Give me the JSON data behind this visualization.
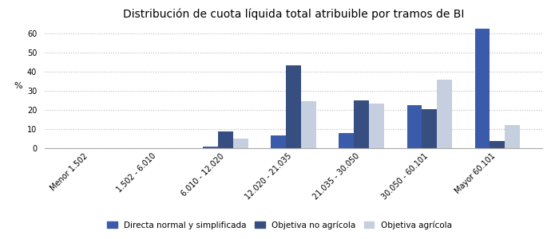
{
  "title": "Distribución de cuota líquida total atribuible por tramos de BI",
  "categories": [
    "Menor 1.502",
    "1.502 - 6.010",
    "6.010 - 12.020",
    "12.020 - 21.035",
    "21.035 - 30.050",
    "30.050 - 60.101",
    "Mayor 60.101"
  ],
  "series": [
    {
      "name": "Directa normal y simplificada",
      "color": "#3a5baa",
      "values": [
        0.0,
        0.0,
        1.0,
        6.5,
        8.0,
        22.5,
        62.5
      ]
    },
    {
      "name": "Objetiva no agrícola",
      "color": "#374f80",
      "values": [
        0.0,
        0.2,
        8.8,
        43.5,
        25.0,
        20.5,
        3.8
      ]
    },
    {
      "name": "Objetiva agrícola",
      "color": "#c5cfe0",
      "values": [
        0.0,
        0.0,
        4.8,
        24.5,
        23.5,
        36.0,
        12.0
      ]
    }
  ],
  "ylabel": "%",
  "ylim": [
    0,
    65
  ],
  "yticks": [
    0,
    10,
    20,
    30,
    40,
    50,
    60
  ],
  "background_color": "#ffffff",
  "grid_color": "#bbbbbb",
  "title_fontsize": 10,
  "legend_fontsize": 7.5,
  "tick_fontsize": 7.0,
  "bar_width": 0.22
}
